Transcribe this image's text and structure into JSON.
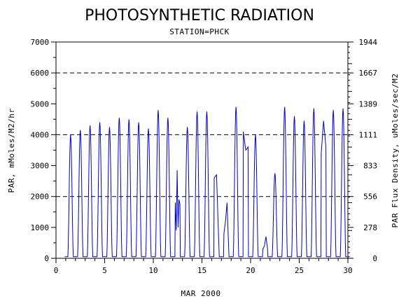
{
  "chart_data": {
    "type": "line",
    "title": "PHOTOSYNTHETIC RADIATION",
    "subtitle": "STATION=PHCK",
    "xlabel": "MAR 2000",
    "ylabel": "PAR, mMoles/M2/hr",
    "y2label": "PAR Flux Density, uMoles/sec/M2",
    "xlim": [
      0,
      30
    ],
    "ylim": [
      0,
      7000
    ],
    "xticks": [
      0,
      5,
      10,
      15,
      20,
      25,
      30
    ],
    "yticks": [
      0,
      1000,
      2000,
      3000,
      4000,
      5000,
      6000,
      7000
    ],
    "y2ticks": [
      "0",
      "278",
      "556",
      "833",
      "1111",
      "1389",
      "1667",
      "1944"
    ],
    "y2scale": 3.6,
    "gridlines": [
      2000,
      4000,
      6000
    ],
    "grid_style": "dashed",
    "line_color": "#0000cc",
    "series": [
      {
        "values": [
          {
            "day": 1,
            "peak": 4000
          },
          {
            "day": 2,
            "peak": 4150
          },
          {
            "day": 3,
            "peak": 4300
          },
          {
            "day": 4,
            "peak": 4400
          },
          {
            "day": 5,
            "peak": 4250
          },
          {
            "day": 6,
            "peak": 4550
          },
          {
            "day": 7,
            "peak": 4500
          },
          {
            "day": 8,
            "peak": 4400
          },
          {
            "day": 9,
            "peak": 4200
          },
          {
            "day": 10,
            "peak": 4800
          },
          {
            "day": 11,
            "peak": 4550
          },
          {
            "day": 12,
            "peak": 2850,
            "shape": [
              1800,
              900,
              2850,
              1000,
              1900,
              1750
            ]
          },
          {
            "day": 13,
            "peak": 4250
          },
          {
            "day": 14,
            "peak": 4750
          },
          {
            "day": 15,
            "peak": 4750
          },
          {
            "day": 16,
            "peak": 2700,
            "shape": [
              2600,
              2700,
              400
            ]
          },
          {
            "day": 17,
            "peak": 1800,
            "shape": [
              800,
              1200,
              1800,
              400
            ]
          },
          {
            "day": 18,
            "peak": 4900
          },
          {
            "day": 19,
            "peak": 4100,
            "shape": [
              4100,
              3500,
              3600
            ]
          },
          {
            "day": 20,
            "peak": 4000
          },
          {
            "day": 21,
            "peak": 700,
            "shape": [
              300,
              400,
              700,
              300
            ]
          },
          {
            "day": 22,
            "peak": 2750
          },
          {
            "day": 23,
            "peak": 4900
          },
          {
            "day": 24,
            "peak": 4600
          },
          {
            "day": 25,
            "peak": 4450
          },
          {
            "day": 26,
            "peak": 4850
          },
          {
            "day": 27,
            "peak": 4450,
            "shape": [
              3400,
              4450,
              3600
            ]
          },
          {
            "day": 28,
            "peak": 4800
          },
          {
            "day": 29,
            "peak": 4850
          }
        ]
      }
    ]
  }
}
